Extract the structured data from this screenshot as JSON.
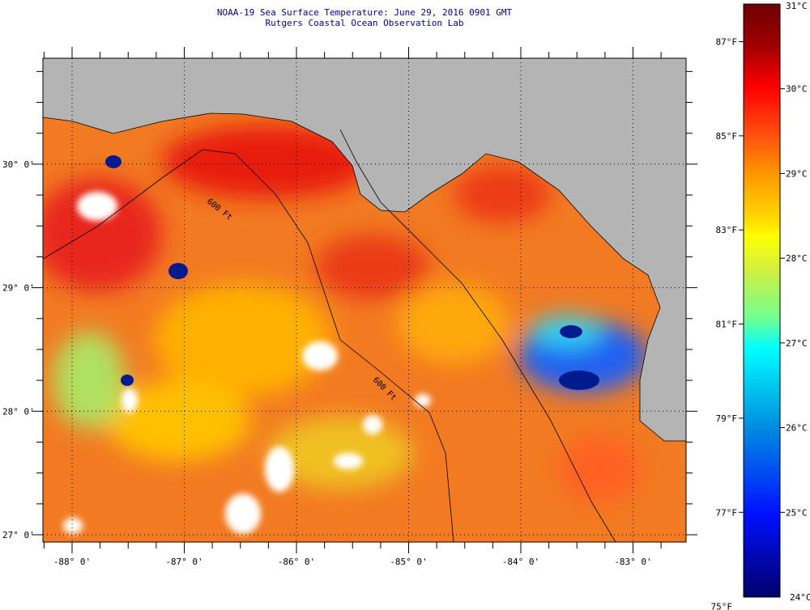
{
  "header": {
    "title": "NOAA-19 Sea Surface Temperature:  June 29, 2016 0901 GMT",
    "subtitle": "Rutgers Coastal Ocean Observation Lab"
  },
  "map": {
    "lat_labels": [
      {
        "value": 30,
        "label": "30° 0'"
      },
      {
        "value": 29,
        "label": "29° 0'"
      },
      {
        "value": 28,
        "label": "28° 0'"
      },
      {
        "value": 27,
        "label": "27° 0'"
      }
    ],
    "lon_labels": [
      {
        "value": -88,
        "label": "-88° 0'"
      },
      {
        "value": -87,
        "label": "-87° 0'"
      },
      {
        "value": -86,
        "label": "-86° 0'"
      },
      {
        "value": -85,
        "label": "-85° 0'"
      },
      {
        "value": -84,
        "label": "-84° 0'"
      },
      {
        "value": -83,
        "label": "-83° 0'"
      }
    ],
    "contour_label": "600 Ft",
    "colors": {
      "land": "#b4b4b4",
      "cloud": "#ffffff",
      "coast": "#000000"
    }
  },
  "colorbar": {
    "celsius": [
      {
        "value": 31,
        "label": "31°C"
      },
      {
        "value": 30,
        "label": "30°C"
      },
      {
        "value": 29,
        "label": "29°C"
      },
      {
        "value": 28,
        "label": "28°C"
      },
      {
        "value": 27,
        "label": "27°C"
      },
      {
        "value": 26,
        "label": "26°C"
      },
      {
        "value": 25,
        "label": "25°C"
      },
      {
        "value": 24,
        "label": "24°C"
      }
    ],
    "fahrenheit": [
      {
        "value": 87,
        "label": "87°F"
      },
      {
        "value": 85,
        "label": "85°F"
      },
      {
        "value": 83,
        "label": "83°F"
      },
      {
        "value": 81,
        "label": "81°F"
      },
      {
        "value": 79,
        "label": "79°F"
      },
      {
        "value": 77,
        "label": "77°F"
      },
      {
        "value": 75,
        "label": "75°F"
      }
    ],
    "range_c": [
      24,
      31
    ]
  }
}
